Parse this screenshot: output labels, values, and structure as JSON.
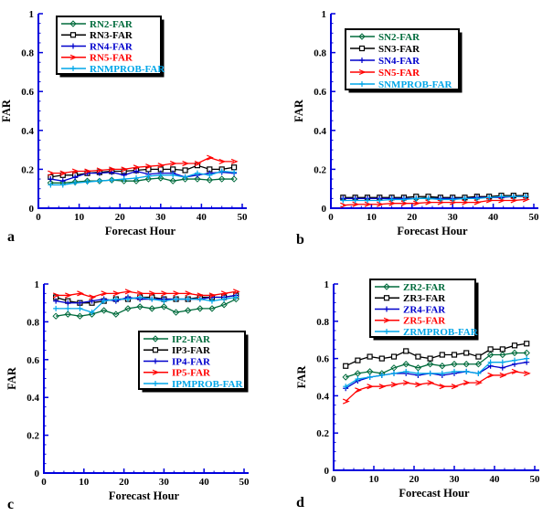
{
  "figure": {
    "background": "#FFFFFF",
    "axis_color": "#0000DD",
    "text_color": "#000000",
    "series_colors": {
      "green": "#006B3C",
      "black": "#000000",
      "blue": "#0000CC",
      "red": "#FF0000",
      "cyan": "#00A6E8"
    }
  },
  "chart_data": [
    {
      "id": "a",
      "panel_label": "a",
      "type": "line",
      "title": "",
      "xlabel": "Forecast Hour",
      "ylabel": "FAR",
      "xlim": [
        0,
        50
      ],
      "ylim": [
        0,
        1
      ],
      "xticks": [
        0,
        10,
        20,
        30,
        40,
        50
      ],
      "yticks": [
        0,
        0.2,
        0.4,
        0.6,
        0.8,
        1
      ],
      "grid": false,
      "legend_position": "upper-left",
      "x": [
        3,
        6,
        9,
        12,
        15,
        18,
        21,
        24,
        27,
        30,
        33,
        36,
        39,
        42,
        45,
        48
      ],
      "series": [
        {
          "name": "RN2-FAR",
          "color": "#006B3C",
          "marker": "diamond",
          "values": [
            0.13,
            0.13,
            0.135,
            0.14,
            0.14,
            0.145,
            0.14,
            0.14,
            0.15,
            0.155,
            0.14,
            0.15,
            0.15,
            0.145,
            0.15,
            0.15
          ]
        },
        {
          "name": "RN3-FAR",
          "color": "#000000",
          "marker": "square",
          "values": [
            0.16,
            0.17,
            0.17,
            0.18,
            0.185,
            0.19,
            0.19,
            0.195,
            0.2,
            0.2,
            0.2,
            0.195,
            0.22,
            0.2,
            0.2,
            0.21
          ]
        },
        {
          "name": "RN4-FAR",
          "color": "#0000CC",
          "marker": "plus",
          "values": [
            0.15,
            0.14,
            0.16,
            0.18,
            0.18,
            0.185,
            0.17,
            0.19,
            0.175,
            0.18,
            0.18,
            0.16,
            0.17,
            0.18,
            0.185,
            0.18
          ]
        },
        {
          "name": "RN5-FAR",
          "color": "#FF0000",
          "marker": "arrow",
          "values": [
            0.18,
            0.18,
            0.19,
            0.19,
            0.195,
            0.2,
            0.2,
            0.21,
            0.215,
            0.22,
            0.23,
            0.23,
            0.23,
            0.26,
            0.24,
            0.24
          ]
        },
        {
          "name": "RNMPROB-FAR",
          "color": "#00A6E8",
          "marker": "plus",
          "values": [
            0.12,
            0.12,
            0.13,
            0.135,
            0.14,
            0.145,
            0.15,
            0.155,
            0.165,
            0.17,
            0.17,
            0.16,
            0.18,
            0.17,
            0.19,
            0.185
          ]
        }
      ]
    },
    {
      "id": "b",
      "panel_label": "b",
      "type": "line",
      "title": "",
      "xlabel": "Forecast Hour",
      "ylabel": "FAR",
      "xlim": [
        0,
        50
      ],
      "ylim": [
        0,
        1
      ],
      "xticks": [
        0,
        10,
        20,
        30,
        40,
        50
      ],
      "yticks": [
        0,
        0.2,
        0.4,
        0.6,
        0.8,
        1
      ],
      "grid": false,
      "legend_position": "upper-left",
      "x": [
        3,
        6,
        9,
        12,
        15,
        18,
        21,
        24,
        27,
        30,
        33,
        36,
        39,
        42,
        45,
        48
      ],
      "series": [
        {
          "name": "SN2-FAR",
          "color": "#006B3C",
          "marker": "diamond",
          "values": [
            0.05,
            0.05,
            0.05,
            0.05,
            0.05,
            0.05,
            0.05,
            0.055,
            0.05,
            0.05,
            0.05,
            0.055,
            0.055,
            0.06,
            0.06,
            0.06
          ]
        },
        {
          "name": "SN3-FAR",
          "color": "#000000",
          "marker": "square",
          "values": [
            0.055,
            0.055,
            0.055,
            0.055,
            0.055,
            0.055,
            0.06,
            0.06,
            0.055,
            0.055,
            0.055,
            0.06,
            0.06,
            0.065,
            0.065,
            0.065
          ]
        },
        {
          "name": "SN4-FAR",
          "color": "#0000CC",
          "marker": "plus",
          "values": [
            0.05,
            0.05,
            0.05,
            0.05,
            0.05,
            0.05,
            0.05,
            0.05,
            0.05,
            0.05,
            0.05,
            0.055,
            0.055,
            0.055,
            0.06,
            0.06
          ]
        },
        {
          "name": "SN5-FAR",
          "color": "#FF0000",
          "marker": "arrow",
          "values": [
            0.015,
            0.02,
            0.02,
            0.02,
            0.025,
            0.025,
            0.025,
            0.03,
            0.03,
            0.03,
            0.03,
            0.03,
            0.04,
            0.04,
            0.04,
            0.045
          ]
        },
        {
          "name": "SNMPROB-FAR",
          "color": "#00A6E8",
          "marker": "plus",
          "values": [
            0.04,
            0.04,
            0.04,
            0.04,
            0.045,
            0.045,
            0.05,
            0.05,
            0.045,
            0.045,
            0.05,
            0.05,
            0.055,
            0.06,
            0.06,
            0.06
          ]
        }
      ]
    },
    {
      "id": "c",
      "panel_label": "c",
      "type": "line",
      "title": "",
      "xlabel": "Forecast Hour",
      "ylabel": "FAR",
      "xlim": [
        0,
        50
      ],
      "ylim": [
        0,
        1
      ],
      "xticks": [
        0,
        10,
        20,
        30,
        40,
        50
      ],
      "yticks": [
        0,
        0.2,
        0.4,
        0.6,
        0.8,
        1
      ],
      "grid": false,
      "legend_position": "middle-right",
      "x": [
        3,
        6,
        9,
        12,
        15,
        18,
        21,
        24,
        27,
        30,
        33,
        36,
        39,
        42,
        45,
        48
      ],
      "series": [
        {
          "name": "IP2-FAR",
          "color": "#006B3C",
          "marker": "diamond",
          "values": [
            0.83,
            0.84,
            0.83,
            0.84,
            0.86,
            0.84,
            0.87,
            0.88,
            0.87,
            0.88,
            0.85,
            0.86,
            0.87,
            0.87,
            0.89,
            0.92
          ]
        },
        {
          "name": "IP3-FAR",
          "color": "#000000",
          "marker": "square",
          "values": [
            0.93,
            0.91,
            0.9,
            0.9,
            0.91,
            0.92,
            0.92,
            0.93,
            0.93,
            0.92,
            0.92,
            0.92,
            0.93,
            0.93,
            0.93,
            0.94
          ]
        },
        {
          "name": "IP4-FAR",
          "color": "#0000CC",
          "marker": "plus",
          "values": [
            0.91,
            0.9,
            0.9,
            0.91,
            0.92,
            0.91,
            0.93,
            0.92,
            0.92,
            0.92,
            0.92,
            0.92,
            0.92,
            0.93,
            0.93,
            0.94
          ]
        },
        {
          "name": "IP5-FAR",
          "color": "#FF0000",
          "marker": "arrow",
          "values": [
            0.94,
            0.94,
            0.95,
            0.93,
            0.95,
            0.95,
            0.96,
            0.95,
            0.95,
            0.95,
            0.95,
            0.95,
            0.94,
            0.94,
            0.95,
            0.96
          ]
        },
        {
          "name": "IPMPROB-FAR",
          "color": "#00A6E8",
          "marker": "plus",
          "values": [
            0.87,
            0.87,
            0.87,
            0.85,
            0.91,
            0.92,
            0.92,
            0.93,
            0.92,
            0.91,
            0.92,
            0.92,
            0.92,
            0.91,
            0.92,
            0.93
          ]
        }
      ]
    },
    {
      "id": "d",
      "panel_label": "d",
      "type": "line",
      "title": "",
      "xlabel": "Forecast Hour",
      "ylabel": "FAR",
      "xlim": [
        0,
        50
      ],
      "ylim": [
        0,
        1
      ],
      "xticks": [
        0,
        10,
        20,
        30,
        40,
        50
      ],
      "yticks": [
        0,
        0.2,
        0.4,
        0.6,
        0.8,
        1
      ],
      "grid": false,
      "legend_position": "upper-center",
      "x": [
        3,
        6,
        9,
        12,
        15,
        18,
        21,
        24,
        27,
        30,
        33,
        36,
        39,
        42,
        45,
        48
      ],
      "series": [
        {
          "name": "ZR2-FAR",
          "color": "#006B3C",
          "marker": "diamond",
          "values": [
            0.5,
            0.52,
            0.53,
            0.52,
            0.55,
            0.57,
            0.55,
            0.57,
            0.56,
            0.57,
            0.57,
            0.57,
            0.62,
            0.62,
            0.63,
            0.63
          ]
        },
        {
          "name": "ZR3-FAR",
          "color": "#000000",
          "marker": "square",
          "values": [
            0.56,
            0.59,
            0.61,
            0.6,
            0.61,
            0.64,
            0.61,
            0.6,
            0.62,
            0.62,
            0.63,
            0.61,
            0.65,
            0.65,
            0.67,
            0.68
          ]
        },
        {
          "name": "ZR4-FAR",
          "color": "#0000CC",
          "marker": "plus",
          "values": [
            0.44,
            0.48,
            0.5,
            0.51,
            0.52,
            0.52,
            0.51,
            0.52,
            0.51,
            0.52,
            0.53,
            0.52,
            0.56,
            0.55,
            0.57,
            0.58
          ]
        },
        {
          "name": "ZR5-FAR",
          "color": "#FF0000",
          "marker": "arrow",
          "values": [
            0.37,
            0.43,
            0.45,
            0.45,
            0.46,
            0.47,
            0.46,
            0.47,
            0.45,
            0.45,
            0.47,
            0.47,
            0.51,
            0.51,
            0.53,
            0.52
          ]
        },
        {
          "name": "ZRMPROB-FAR",
          "color": "#00A6E8",
          "marker": "plus",
          "values": [
            0.45,
            0.49,
            0.5,
            0.51,
            0.52,
            0.53,
            0.52,
            0.52,
            0.52,
            0.53,
            0.53,
            0.52,
            0.58,
            0.58,
            0.59,
            0.6
          ]
        }
      ]
    }
  ]
}
